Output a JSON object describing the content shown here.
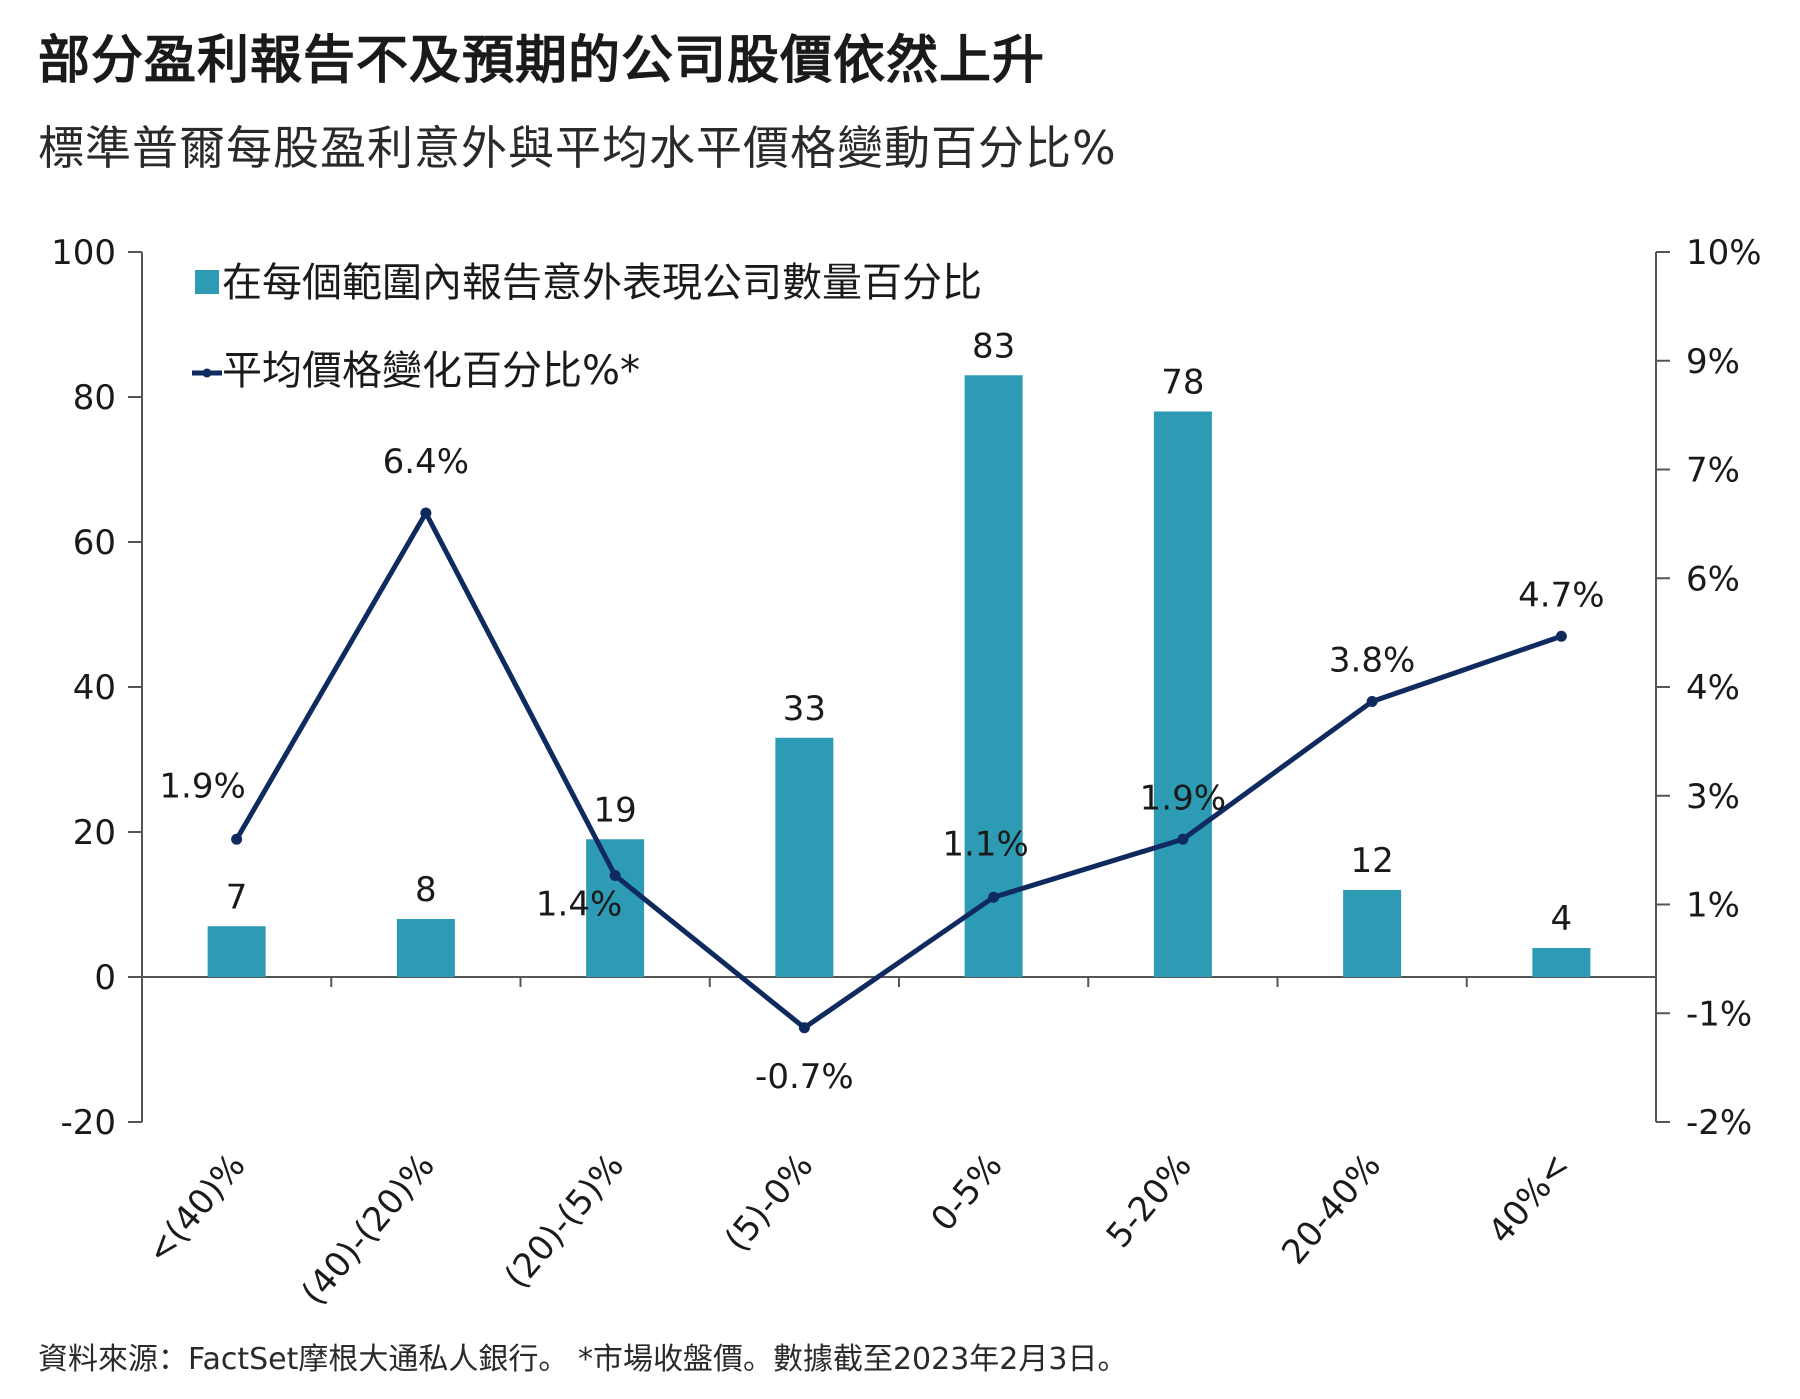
{
  "title": "部分盈利報告不及預期的公司股價依然上升",
  "subtitle": "標準普爾每股盈利意外與平均水平價格變動百分比%",
  "footer": "資料來源：FactSet摩根大通私人銀行。 *市場收盤價。數據截至2023年2月3日。",
  "chart_data": {
    "type": "bar",
    "categories": [
      "<(40)%",
      "(40)-(20)%",
      "(20)-(5)%",
      "(5)-0%",
      "0-5%",
      "5-20%",
      "20-40%",
      "40%<"
    ],
    "series": [
      {
        "name": "在每個範圍內報告意外表現公司數量百分比",
        "type": "bar",
        "axis": "left",
        "values": [
          7,
          8,
          19,
          33,
          83,
          78,
          12,
          4
        ],
        "color": "#2e9bb5"
      },
      {
        "name": "平均價格變化百分比%*",
        "type": "line",
        "axis": "right",
        "values": [
          1.9,
          6.4,
          1.4,
          -0.7,
          1.1,
          1.9,
          3.8,
          4.7
        ],
        "labels": [
          "1.9%",
          "6.4%",
          "1.4%",
          "-0.7%",
          "1.1%",
          "1.9%",
          "3.8%",
          "4.7%"
        ],
        "color": "#0f2a5e"
      }
    ],
    "left_axis": {
      "ylim": [
        -20,
        100
      ],
      "ticks": [
        "100",
        "80",
        "60",
        "40",
        "20",
        "0",
        "-20"
      ]
    },
    "right_axis": {
      "ticks": [
        "10%",
        "9%",
        "7%",
        "6%",
        "4%",
        "3%",
        "1%",
        "-1%",
        "-2%"
      ]
    },
    "legend_position": "top-left",
    "grid": false
  }
}
